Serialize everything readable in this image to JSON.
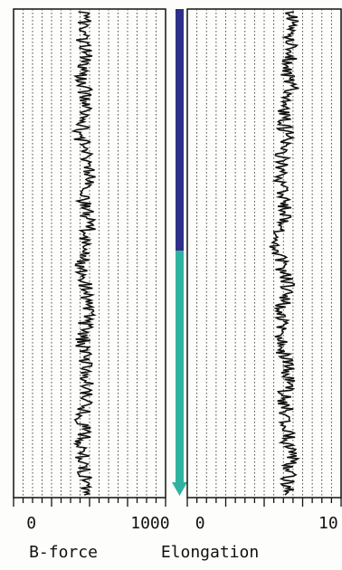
{
  "chart_data": [
    {
      "type": "line",
      "orientation": "vertical-trace",
      "xlabel": "B-force",
      "xlim": [
        -150,
        1130
      ],
      "x_ticks": [
        "0",
        "1000"
      ],
      "x_tick_values": [
        0,
        1000
      ],
      "grid": true,
      "trace_color": "#111111",
      "depth_samples": 40,
      "values": [
        440,
        455,
        430,
        470,
        450,
        425,
        445,
        460,
        470,
        430,
        410,
        455,
        480,
        500,
        470,
        440,
        460,
        490,
        470,
        445,
        430,
        420,
        450,
        470,
        480,
        460,
        440,
        430,
        445,
        450,
        470,
        455,
        440,
        430,
        445,
        420,
        430,
        450,
        470,
        440
      ]
    },
    {
      "type": "line",
      "orientation": "vertical-trace",
      "xlabel": "Elongation",
      "xlim": [
        -1,
        11
      ],
      "x_ticks": [
        "0",
        "10"
      ],
      "x_tick_values": [
        0,
        10
      ],
      "grid": true,
      "trace_color": "#111111",
      "depth_samples": 40,
      "values": [
        7.0,
        7.2,
        6.9,
        7.3,
        7.0,
        6.8,
        7.2,
        6.9,
        6.6,
        6.5,
        6.8,
        6.7,
        6.3,
        6.4,
        6.2,
        6.5,
        6.7,
        6.4,
        6.2,
        6.0,
        6.3,
        6.5,
        6.8,
        6.6,
        6.4,
        6.3,
        6.1,
        6.4,
        6.6,
        6.9,
        6.8,
        6.5,
        6.7,
        6.6,
        6.9,
        6.8,
        7.2,
        7.0,
        6.9,
        7.1
      ]
    }
  ],
  "depth_bar": {
    "colors": [
      "#2e2f88",
      "#2fb3a0"
    ],
    "split_fraction": 0.51
  }
}
